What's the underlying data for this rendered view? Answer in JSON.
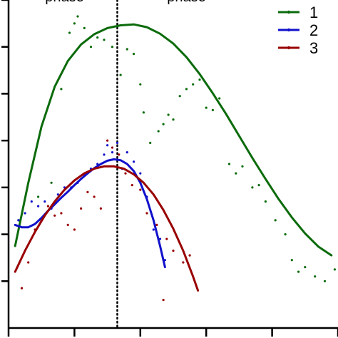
{
  "chart_data": {
    "type": "scatter",
    "title": "",
    "xlabel": "",
    "ylabel": "",
    "xlim": [
      0,
      10
    ],
    "ylim": [
      0,
      7
    ],
    "x_ticks": [
      0,
      2,
      4,
      6,
      8,
      10
    ],
    "y_ticks": [
      1,
      2,
      3,
      4,
      5,
      6,
      7
    ],
    "grid": false,
    "legend": "top-right",
    "divider": {
      "x": 3.3,
      "style": "dotted"
    },
    "phase_labels": [
      {
        "text": "phase",
        "x": 1.7,
        "y": 7.0
      },
      {
        "text": "phase",
        "x": 5.4,
        "y": 7.0
      }
    ],
    "series": [
      {
        "name": "1",
        "color": "#0b6b0b",
        "fit": [
          [
            0.2,
            1.75
          ],
          [
            0.6,
            3.1
          ],
          [
            1.0,
            4.3
          ],
          [
            1.4,
            5.15
          ],
          [
            1.8,
            5.7
          ],
          [
            2.2,
            6.05
          ],
          [
            2.6,
            6.27
          ],
          [
            3.0,
            6.4
          ],
          [
            3.4,
            6.46
          ],
          [
            3.8,
            6.48
          ],
          [
            4.2,
            6.42
          ],
          [
            4.6,
            6.28
          ],
          [
            5.0,
            6.07
          ],
          [
            5.4,
            5.78
          ],
          [
            5.8,
            5.42
          ],
          [
            6.2,
            5.01
          ],
          [
            6.6,
            4.57
          ],
          [
            7.0,
            4.1
          ],
          [
            7.4,
            3.63
          ],
          [
            7.8,
            3.18
          ],
          [
            8.2,
            2.75
          ],
          [
            8.6,
            2.36
          ],
          [
            9.0,
            2.02
          ],
          [
            9.4,
            1.74
          ],
          [
            9.8,
            1.55
          ]
        ],
        "points": [
          [
            0.3,
            2.3
          ],
          [
            0.9,
            2.8
          ],
          [
            1.3,
            3.1
          ],
          [
            1.6,
            5.1
          ],
          [
            1.85,
            6.3
          ],
          [
            2.0,
            6.5
          ],
          [
            2.1,
            6.65
          ],
          [
            2.3,
            6.4
          ],
          [
            2.5,
            6.0
          ],
          [
            2.7,
            6.2
          ],
          [
            2.9,
            6.15
          ],
          [
            3.15,
            6.0
          ],
          [
            3.4,
            5.4
          ],
          [
            3.6,
            5.95
          ],
          [
            3.8,
            5.85
          ],
          [
            4.0,
            5.2
          ],
          [
            4.1,
            4.6
          ],
          [
            4.3,
            3.95
          ],
          [
            4.55,
            4.2
          ],
          [
            4.7,
            4.35
          ],
          [
            4.85,
            4.55
          ],
          [
            5.0,
            4.45
          ],
          [
            5.2,
            4.95
          ],
          [
            5.4,
            5.1
          ],
          [
            5.6,
            5.2
          ],
          [
            5.8,
            5.3
          ],
          [
            6.0,
            4.7
          ],
          [
            6.2,
            4.65
          ],
          [
            6.4,
            4.9
          ],
          [
            6.7,
            3.5
          ],
          [
            6.9,
            3.3
          ],
          [
            7.1,
            3.45
          ],
          [
            7.4,
            3.0
          ],
          [
            7.6,
            3.05
          ],
          [
            7.8,
            2.7
          ],
          [
            8.1,
            2.3
          ],
          [
            8.4,
            2.0
          ],
          [
            8.6,
            1.45
          ],
          [
            8.8,
            1.2
          ],
          [
            9.0,
            1.3
          ],
          [
            9.3,
            1.1
          ],
          [
            9.6,
            1.0
          ],
          [
            9.9,
            1.25
          ]
        ]
      },
      {
        "name": "2",
        "color": "#1111cc",
        "fit": [
          [
            0.2,
            2.2
          ],
          [
            0.4,
            2.15
          ],
          [
            0.6,
            2.15
          ],
          [
            0.8,
            2.22
          ],
          [
            1.0,
            2.35
          ],
          [
            1.2,
            2.5
          ],
          [
            1.4,
            2.64
          ],
          [
            1.6,
            2.78
          ],
          [
            1.8,
            2.91
          ],
          [
            2.0,
            3.05
          ],
          [
            2.2,
            3.18
          ],
          [
            2.4,
            3.3
          ],
          [
            2.6,
            3.41
          ],
          [
            2.8,
            3.5
          ],
          [
            3.0,
            3.57
          ],
          [
            3.2,
            3.6
          ],
          [
            3.4,
            3.58
          ],
          [
            3.6,
            3.5
          ],
          [
            3.8,
            3.35
          ],
          [
            4.0,
            3.1
          ],
          [
            4.2,
            2.75
          ],
          [
            4.4,
            2.3
          ],
          [
            4.6,
            1.75
          ],
          [
            4.75,
            1.3
          ]
        ],
        "points": [
          [
            0.3,
            2.3
          ],
          [
            0.5,
            2.45
          ],
          [
            0.7,
            2.7
          ],
          [
            0.9,
            2.6
          ],
          [
            1.1,
            2.7
          ],
          [
            1.3,
            2.55
          ],
          [
            1.5,
            2.85
          ],
          [
            1.7,
            3.0
          ],
          [
            1.9,
            3.0
          ],
          [
            2.1,
            3.1
          ],
          [
            2.3,
            3.25
          ],
          [
            2.5,
            3.4
          ],
          [
            2.7,
            3.5
          ],
          [
            2.9,
            3.7
          ],
          [
            3.0,
            3.9
          ],
          [
            3.15,
            3.75
          ],
          [
            3.3,
            3.95
          ],
          [
            3.45,
            3.4
          ],
          [
            3.6,
            3.75
          ],
          [
            3.8,
            3.55
          ],
          [
            4.0,
            3.3
          ],
          [
            4.2,
            2.8
          ],
          [
            4.4,
            2.1
          ],
          [
            4.6,
            1.9
          ],
          [
            4.75,
            1.45
          ]
        ]
      },
      {
        "name": "3",
        "color": "#990000",
        "fit": [
          [
            0.2,
            1.2
          ],
          [
            0.5,
            1.65
          ],
          [
            0.8,
            2.05
          ],
          [
            1.1,
            2.4
          ],
          [
            1.4,
            2.7
          ],
          [
            1.7,
            2.95
          ],
          [
            2.0,
            3.15
          ],
          [
            2.3,
            3.3
          ],
          [
            2.6,
            3.4
          ],
          [
            2.9,
            3.45
          ],
          [
            3.2,
            3.45
          ],
          [
            3.5,
            3.4
          ],
          [
            3.8,
            3.28
          ],
          [
            4.1,
            3.1
          ],
          [
            4.4,
            2.85
          ],
          [
            4.7,
            2.52
          ],
          [
            5.0,
            2.12
          ],
          [
            5.3,
            1.65
          ],
          [
            5.6,
            1.1
          ],
          [
            5.75,
            0.8
          ]
        ],
        "points": [
          [
            0.4,
            0.85
          ],
          [
            0.6,
            1.4
          ],
          [
            0.8,
            2.1
          ],
          [
            1.0,
            2.3
          ],
          [
            1.2,
            2.6
          ],
          [
            1.4,
            2.4
          ],
          [
            1.6,
            2.45
          ],
          [
            1.8,
            2.2
          ],
          [
            2.0,
            2.1
          ],
          [
            2.2,
            2.55
          ],
          [
            2.4,
            2.9
          ],
          [
            2.6,
            2.8
          ],
          [
            2.8,
            2.55
          ],
          [
            3.0,
            4.0
          ],
          [
            3.15,
            3.85
          ],
          [
            3.35,
            3.7
          ],
          [
            3.55,
            3.3
          ],
          [
            3.75,
            3.05
          ],
          [
            4.0,
            2.95
          ],
          [
            4.2,
            2.45
          ],
          [
            4.5,
            2.2
          ],
          [
            4.8,
            1.9
          ],
          [
            5.0,
            1.65
          ],
          [
            5.3,
            1.4
          ],
          [
            5.5,
            1.55
          ],
          [
            4.7,
            0.6
          ]
        ]
      }
    ]
  }
}
